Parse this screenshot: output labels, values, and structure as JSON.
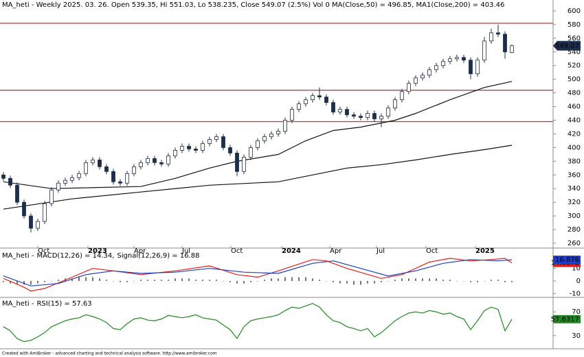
{
  "chart_data": [
    {
      "type": "candlestick",
      "title": "MA_heti - Weekly 2025. 03. 26. Open 539.35, Hi 551.03, Lo 538.235, Close 549.07 (2.5%) Vol 0 MA(Close,50) = 496.85, MA1(Close,200) = 403.46",
      "up_color": "#ffffff",
      "down_color": "#1c2e4a",
      "open": [
        360,
        355,
        345,
        320,
        300,
        282,
        292,
        318,
        338,
        348,
        352,
        356,
        362,
        378,
        382,
        372,
        365,
        350,
        348,
        362,
        372,
        378,
        384,
        378,
        376,
        388,
        396,
        402,
        398,
        396,
        406,
        412,
        416,
        400,
        392,
        365,
        386,
        400,
        410,
        416,
        420,
        424,
        440,
        456,
        464,
        470,
        476,
        474,
        466,
        452,
        456,
        448,
        446,
        444,
        450,
        442,
        446,
        458,
        470,
        482,
        494,
        502,
        506,
        514,
        520,
        526,
        530,
        532,
        528,
        508,
        528,
        556,
        568,
        566,
        539.35
      ],
      "high": [
        364,
        359,
        349,
        324,
        304,
        296,
        322,
        342,
        352,
        356,
        360,
        366,
        382,
        386,
        386,
        376,
        369,
        354,
        366,
        376,
        382,
        388,
        388,
        382,
        392,
        400,
        406,
        406,
        402,
        410,
        416,
        420,
        420,
        404,
        396,
        390,
        404,
        414,
        420,
        424,
        428,
        444,
        460,
        468,
        474,
        480,
        488,
        478,
        470,
        460,
        460,
        452,
        450,
        454,
        454,
        450,
        462,
        474,
        486,
        498,
        506,
        510,
        518,
        524,
        530,
        534,
        536,
        536,
        532,
        532,
        562,
        574,
        580,
        570,
        551.03
      ],
      "low": [
        351,
        341,
        316,
        296,
        276,
        278,
        288,
        314,
        334,
        344,
        348,
        352,
        358,
        374,
        368,
        361,
        346,
        344,
        344,
        358,
        368,
        374,
        374,
        372,
        372,
        384,
        392,
        394,
        392,
        392,
        402,
        408,
        396,
        388,
        358,
        361,
        382,
        396,
        406,
        412,
        416,
        420,
        436,
        452,
        460,
        466,
        470,
        462,
        448,
        448,
        444,
        442,
        440,
        440,
        438,
        430,
        442,
        454,
        466,
        478,
        490,
        498,
        502,
        510,
        516,
        522,
        526,
        524,
        500,
        504,
        524,
        552,
        562,
        530,
        538.235
      ],
      "close": [
        355,
        345,
        320,
        300,
        282,
        292,
        318,
        338,
        348,
        352,
        356,
        362,
        378,
        382,
        372,
        365,
        350,
        348,
        362,
        372,
        378,
        384,
        378,
        376,
        388,
        396,
        402,
        398,
        396,
        406,
        412,
        416,
        400,
        392,
        365,
        386,
        400,
        410,
        416,
        420,
        424,
        440,
        456,
        464,
        470,
        476,
        474,
        466,
        452,
        456,
        448,
        446,
        444,
        450,
        442,
        446,
        458,
        470,
        482,
        494,
        502,
        506,
        514,
        520,
        526,
        530,
        532,
        528,
        508,
        528,
        556,
        568,
        566,
        540,
        549.07
      ],
      "series": [
        {
          "name": "MA(Close,50)",
          "color": "#111111",
          "x": [
            0,
            7,
            20,
            25,
            30,
            34,
            40,
            44,
            48,
            52,
            57,
            60,
            65,
            70,
            74
          ],
          "values": [
            350,
            340,
            343,
            355,
            370,
            380,
            390,
            410,
            425,
            430,
            440,
            450,
            470,
            488,
            496.85
          ]
        },
        {
          "name": "MA1(Close,200)",
          "color": "#111111",
          "x": [
            0,
            10,
            20,
            30,
            40,
            45,
            50,
            55,
            60,
            65,
            70,
            74
          ],
          "values": [
            310,
            325,
            335,
            345,
            350,
            360,
            370,
            375,
            382,
            390,
            397,
            403.46
          ]
        }
      ],
      "hlines": [
        582,
        484,
        438
      ],
      "hline_color": "#d62728",
      "ylim": [
        253,
        614
      ],
      "yticks": [
        260,
        280,
        300,
        320,
        340,
        360,
        380,
        400,
        420,
        440,
        460,
        480,
        500,
        520,
        540,
        560,
        580,
        600
      ],
      "xticks": [
        {
          "value": 5,
          "label": "Oct"
        },
        {
          "value": 12.3,
          "label": "2023"
        },
        {
          "value": 19,
          "label": "Apr"
        },
        {
          "value": 26,
          "label": "Jul"
        },
        {
          "value": 33.1,
          "label": "Oct"
        },
        {
          "value": 40.5,
          "label": "2024"
        },
        {
          "value": 47.5,
          "label": "Apr"
        },
        {
          "value": 54.3,
          "label": "Jul"
        },
        {
          "value": 61.5,
          "label": "Oct"
        },
        {
          "value": 68.7,
          "label": "2025"
        }
      ],
      "badge_color": "#1c2e4a"
    },
    {
      "type": "macd",
      "title": "MA_heti -",
      "series": [
        {
          "name": "MACD(12,26)",
          "label": "MACD(12,26) = 14.34,",
          "badge": "14.3372",
          "color": "#e0201b",
          "x": [
            0,
            3,
            4,
            6,
            10,
            13,
            16,
            20,
            25,
            30,
            34,
            37,
            40,
            45,
            47,
            50,
            55,
            58,
            62,
            65,
            68,
            71,
            73,
            74
          ],
          "values": [
            2,
            -5,
            -8,
            -6,
            3,
            10,
            8,
            5,
            8,
            12,
            5,
            3,
            8,
            17,
            16,
            10,
            2,
            5,
            15,
            18,
            16,
            17,
            18,
            14.34
          ]
        },
        {
          "name": "Signal(12,26,9)",
          "label": "Signal(12,26,9) = 16.88",
          "badge": "16.876",
          "color": "#1f3fbf",
          "x": [
            0,
            4,
            8,
            12,
            16,
            20,
            25,
            30,
            35,
            40,
            45,
            48,
            52,
            56,
            60,
            64,
            68,
            72,
            74
          ],
          "values": [
            4,
            -4,
            -2,
            5,
            8,
            6,
            7,
            10,
            7,
            6,
            14,
            16,
            10,
            4,
            8,
            14,
            17,
            16,
            16.88
          ]
        }
      ],
      "histogram": [
        -1,
        -2,
        -3,
        -3,
        -3,
        -2,
        -1,
        0,
        1,
        2,
        2,
        3,
        3,
        3,
        2,
        1,
        0,
        -1,
        -1,
        0,
        1,
        1,
        1,
        1,
        1,
        2,
        2,
        2,
        1,
        1,
        1,
        1,
        0,
        -1,
        -2,
        -2,
        -1,
        0,
        1,
        2,
        2,
        3,
        3,
        3,
        3,
        2,
        1,
        0,
        -1,
        -2,
        -2,
        -3,
        -3,
        -2,
        -2,
        -1,
        0,
        1,
        2,
        2,
        2,
        2,
        2,
        2,
        1,
        1,
        0,
        0,
        -1,
        -1,
        0,
        1,
        1,
        -1,
        -1
      ],
      "histogram_color": "#555555",
      "ylim": [
        -12,
        24
      ],
      "yticks": [
        10,
        0,
        -10
      ]
    },
    {
      "type": "rsi",
      "title": "MA_heti -",
      "series": [
        {
          "name": "RSI(15)",
          "label": "RSI(15) = 57.63",
          "badge": "57.6317",
          "color": "#1e8a1e",
          "values": [
            45,
            38,
            25,
            20,
            22,
            28,
            35,
            45,
            50,
            55,
            58,
            60,
            65,
            62,
            58,
            52,
            42,
            40,
            50,
            58,
            60,
            56,
            55,
            58,
            64,
            62,
            60,
            62,
            65,
            60,
            58,
            56,
            48,
            40,
            25,
            45,
            55,
            58,
            60,
            62,
            65,
            72,
            78,
            76,
            80,
            84,
            78,
            65,
            55,
            52,
            45,
            42,
            38,
            42,
            28,
            35,
            45,
            55,
            62,
            68,
            70,
            68,
            72,
            70,
            66,
            68,
            62,
            58,
            40,
            55,
            72,
            78,
            74,
            38,
            57.63
          ]
        }
      ],
      "ylim": [
        9,
        92
      ],
      "yticks": [
        70,
        30
      ]
    }
  ],
  "footer": "Created with AmiBroker - advanced charting and technical analysis software. http://www.amibroker.com"
}
